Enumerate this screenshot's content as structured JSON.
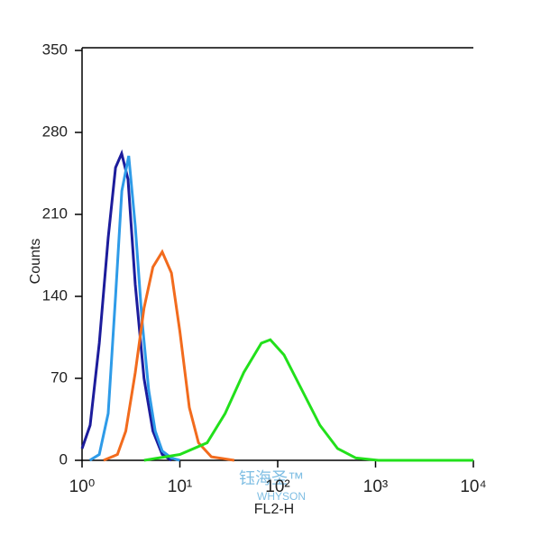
{
  "chart_data": {
    "type": "line",
    "xscale": "log",
    "ylabel": "Counts",
    "xlabel": "FL2-H",
    "xlim": [
      1,
      10000
    ],
    "xticks": [
      {
        "value": 1,
        "label": "10⁰"
      },
      {
        "value": 10,
        "label": "10¹"
      },
      {
        "value": 100,
        "label": "10²"
      },
      {
        "value": 1000,
        "label": "10³"
      },
      {
        "value": 10000,
        "label": "10⁴"
      }
    ],
    "ylim": [
      0,
      350
    ],
    "yticks": [
      0,
      70,
      140,
      210,
      280,
      350
    ],
    "watermark": [
      "钰海圣™",
      "WHYSON"
    ],
    "series": [
      {
        "color": "#1c1c9c",
        "x": [
          1,
          1.21,
          1.5,
          1.85,
          2.2,
          2.54,
          2.95,
          3.5,
          4.3,
          5.3,
          6.6,
          8.2
        ],
        "values": [
          10,
          30,
          100,
          190,
          250,
          262,
          240,
          150,
          70,
          25,
          5,
          0
        ]
      },
      {
        "color": "#2e9be8",
        "x": [
          1.2,
          1.5,
          1.85,
          2.2,
          2.55,
          3.0,
          3.5,
          4.1,
          4.8,
          5.6,
          6.6,
          8.2,
          10
        ],
        "values": [
          0,
          5,
          40,
          140,
          230,
          260,
          200,
          120,
          60,
          25,
          8,
          2,
          0
        ]
      },
      {
        "color": "#f26b1d",
        "x": [
          1.66,
          2.3,
          2.8,
          3.5,
          4.3,
          5.3,
          6.6,
          8.2,
          10,
          12.5,
          15.5,
          21,
          36
        ],
        "values": [
          0,
          5,
          25,
          75,
          130,
          165,
          178,
          160,
          110,
          45,
          15,
          3,
          0
        ]
      },
      {
        "color": "#22e01b",
        "x": [
          4.3,
          10,
          19,
          29,
          45,
          68,
          84,
          116,
          177,
          270,
          410,
          630,
          1070,
          10000
        ],
        "values": [
          0,
          5,
          15,
          40,
          75,
          100,
          103,
          90,
          60,
          30,
          10,
          2,
          0,
          0
        ]
      }
    ]
  }
}
